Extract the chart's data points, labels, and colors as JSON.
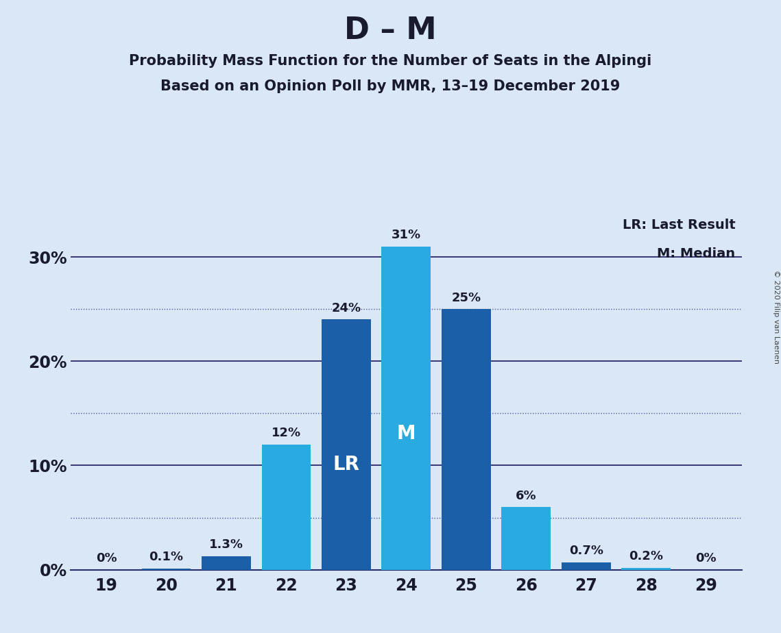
{
  "title_main": "D – M",
  "title_sub1": "Probability Mass Function for the Number of Seats in the Alpingi",
  "title_sub2": "Based on an Opinion Poll by MMR, 13–19 December 2019",
  "copyright": "© 2020 Filip van Laenen",
  "seats": [
    19,
    20,
    21,
    22,
    23,
    24,
    25,
    26,
    27,
    28,
    29
  ],
  "values": [
    0.0,
    0.1,
    1.3,
    12.0,
    24.0,
    31.0,
    25.0,
    6.0,
    0.7,
    0.2,
    0.0
  ],
  "labels": [
    "0%",
    "0.1%",
    "1.3%",
    "12%",
    "24%",
    "31%",
    "25%",
    "6%",
    "0.7%",
    "0.2%",
    "0%"
  ],
  "bar_colors": [
    "#1a5fa8",
    "#1a5fa8",
    "#1a5fa8",
    "#29abe2",
    "#1a5fa8",
    "#29abe2",
    "#1a5fa8",
    "#29abe2",
    "#1a5fa8",
    "#29abe2",
    "#29abe2"
  ],
  "last_result": 23,
  "median": 24,
  "dark_blue": "#1a5090",
  "light_blue": "#29abe2",
  "background_color": "#dae8f5",
  "text_color": "#1a1a2e",
  "ytick_labels": [
    "0%",
    "10%",
    "20%",
    "30%"
  ],
  "ytick_values": [
    0,
    10,
    20,
    30
  ],
  "ytick_dotted": [
    5,
    15,
    25
  ],
  "ylim": [
    0,
    34
  ],
  "xlim": [
    18.4,
    29.6
  ],
  "legend_lr": "LR: Last Result",
  "legend_m": "M: Median"
}
